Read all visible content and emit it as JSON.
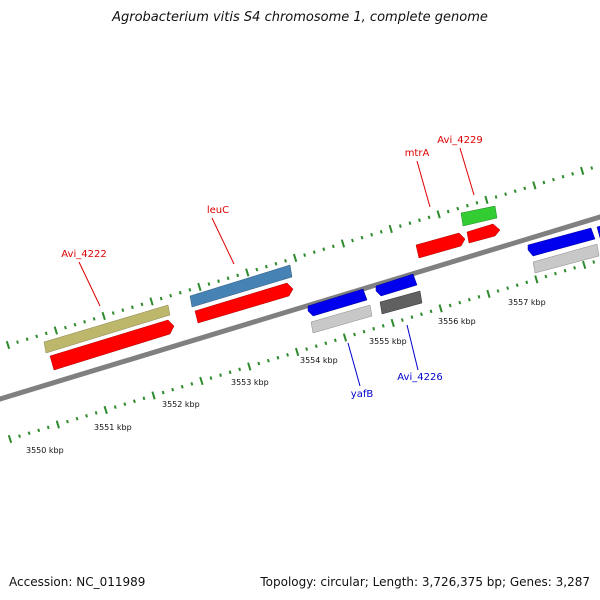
{
  "title": "Agrobacterium vitis S4 chromosome 1, complete genome",
  "footer": {
    "accession": "Accession: NC_011989",
    "topology": "Topology: circular; Length: 3,726,375 bp; Genes: 3,287"
  },
  "colors": {
    "backbone": "#808080",
    "ticks": "#2e8b2e",
    "red": "#ff0000",
    "blue": "#0000ee",
    "olive": "#bdb76b",
    "steelblue": "#4682b4",
    "green": "#33cc33",
    "lightgray": "#c8c8c8",
    "darkgray": "#606060",
    "label_red": "#dd0000",
    "label_blue": "#0000cc"
  },
  "scale_labels": [
    "3550 kbp",
    "3551 kbp",
    "3552 kbp",
    "3553 kbp",
    "3554 kbp",
    "3555 kbp",
    "3556 kbp",
    "3557 kbp"
  ],
  "gene_labels": {
    "avi_4222": "Avi_4222",
    "leuC": "leuC",
    "mtrA": "mtrA",
    "avi_4229": "Avi_4229",
    "yafB": "yafB",
    "avi_4226": "Avi_4226"
  }
}
